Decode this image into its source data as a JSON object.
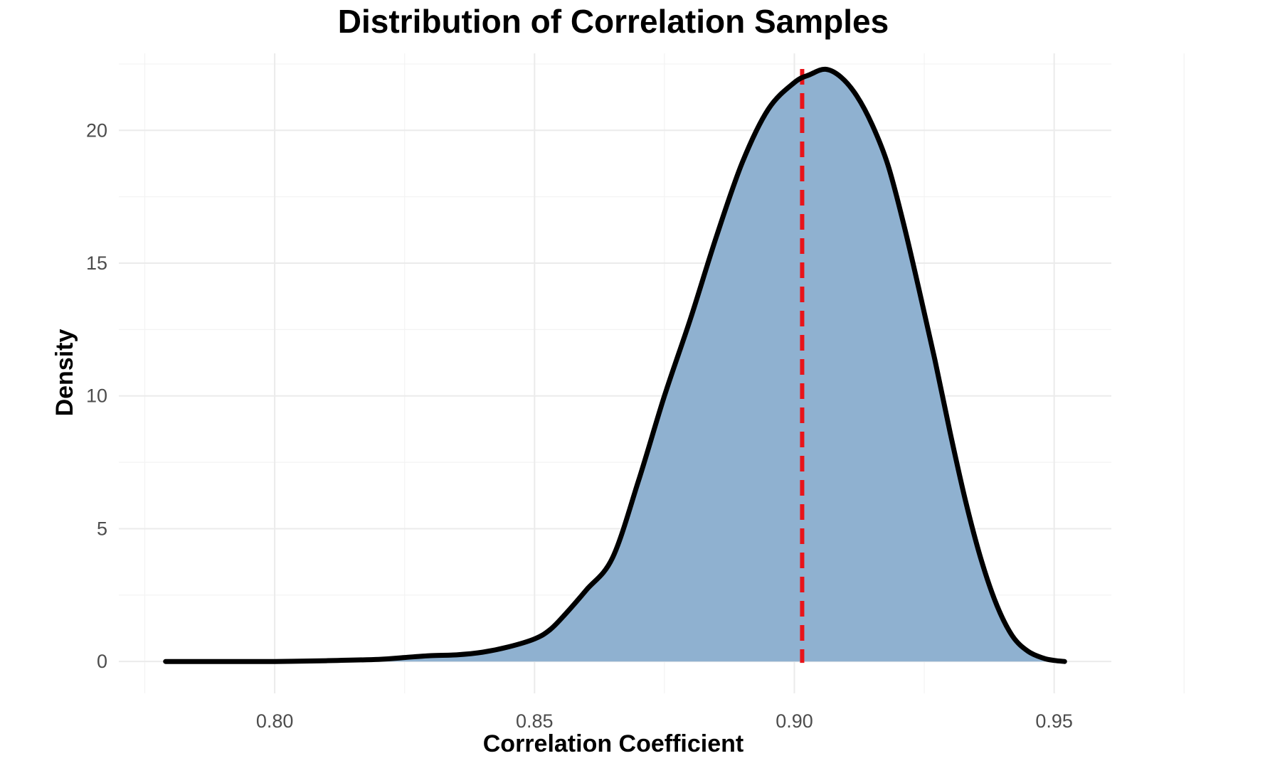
{
  "chart_data": {
    "type": "area",
    "title": "Distribution of Correlation Samples",
    "xlabel": "Correlation Coefficient",
    "ylabel": "Density",
    "xlim": [
      0.77,
      0.961
    ],
    "ylim": [
      -1.2,
      22.9
    ],
    "x_ticks": [
      0.8,
      0.85,
      0.9,
      0.95
    ],
    "x_tick_labels": [
      "0.80",
      "0.85",
      "0.90",
      "0.95"
    ],
    "y_ticks": [
      0,
      5,
      10,
      15,
      20
    ],
    "y_tick_labels": [
      "0",
      "5",
      "10",
      "15",
      "20"
    ],
    "grid": true,
    "legend": "none",
    "series": [
      {
        "x": [
          0.779,
          0.79,
          0.8,
          0.81,
          0.82,
          0.825,
          0.83,
          0.835,
          0.84,
          0.845,
          0.85,
          0.853,
          0.856,
          0.86,
          0.865,
          0.87,
          0.875,
          0.88,
          0.885,
          0.89,
          0.895,
          0.9,
          0.903,
          0.906,
          0.909,
          0.912,
          0.915,
          0.918,
          0.921,
          0.924,
          0.927,
          0.93,
          0.933,
          0.936,
          0.939,
          0.942,
          0.945,
          0.948,
          0.95,
          0.952
        ],
        "y": [
          0.0,
          0.0,
          0.0,
          0.03,
          0.08,
          0.15,
          0.22,
          0.25,
          0.35,
          0.55,
          0.85,
          1.2,
          1.8,
          2.7,
          3.9,
          6.8,
          10.0,
          12.9,
          16.0,
          18.8,
          20.8,
          21.8,
          22.1,
          22.3,
          22.0,
          21.3,
          20.2,
          18.7,
          16.5,
          14.0,
          11.4,
          8.6,
          6.0,
          3.8,
          2.1,
          0.95,
          0.38,
          0.12,
          0.04,
          0.0
        ],
        "fill_color": "#8fb1d0",
        "line_color": "#000000"
      }
    ],
    "reference_line": {
      "x": 0.9015,
      "color": "#e8141a",
      "style": "dashed"
    }
  }
}
